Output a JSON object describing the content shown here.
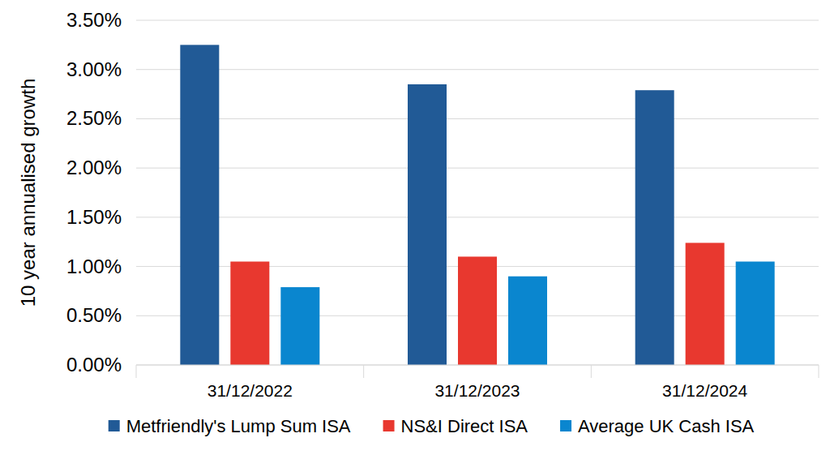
{
  "chart_data": {
    "type": "bar",
    "ylabel": "10 year annualised growth",
    "categories": [
      "31/12/2022",
      "31/12/2023",
      "31/12/2024"
    ],
    "series": [
      {
        "name": "Metfriendly's Lump Sum ISA",
        "color": "#215a96",
        "values": [
          3.25,
          2.85,
          2.79
        ]
      },
      {
        "name": "NS&I Direct ISA",
        "color": "#e8382f",
        "values": [
          1.05,
          1.1,
          1.24
        ]
      },
      {
        "name": "Average UK Cash ISA",
        "color": "#0a86cf",
        "values": [
          0.79,
          0.9,
          1.05
        ]
      }
    ],
    "ylim": [
      0,
      3.5
    ],
    "yticks": [
      {
        "value": 0,
        "label": "0.00%"
      },
      {
        "value": 0.5,
        "label": "0.50%"
      },
      {
        "value": 1,
        "label": "1.00%"
      },
      {
        "value": 1.5,
        "label": "1.50%"
      },
      {
        "value": 2,
        "label": "2.00%"
      },
      {
        "value": 2.5,
        "label": "2.50%"
      },
      {
        "value": 3,
        "label": "3.00%"
      },
      {
        "value": 3.5,
        "label": "3.50%"
      }
    ],
    "grid": true,
    "legend": "bottom"
  }
}
